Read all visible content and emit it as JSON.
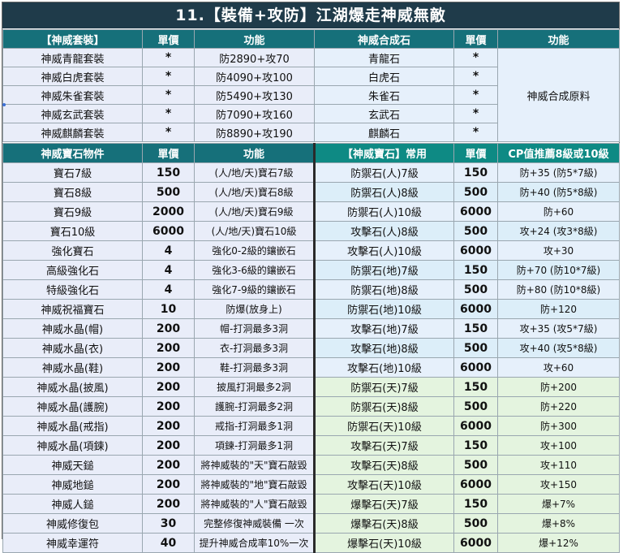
{
  "title": "11.【裝備+攻防】江湖爆走神威無敵",
  "top_table": {
    "headers": [
      "【神威套裝】",
      "單價",
      "功能",
      "神威合成石",
      "單價",
      "功能"
    ],
    "rows": [
      [
        "神威青龍套裝",
        "*",
        "防2890+攻70",
        "青龍石",
        "*"
      ],
      [
        "神威白虎套裝",
        "*",
        "防4090+攻100",
        "白虎石",
        "*"
      ],
      [
        "神威朱雀套裝",
        "*",
        "防5490+攻130",
        "朱雀石",
        "*"
      ],
      [
        "神威玄武套裝",
        "*",
        "防7090+攻160",
        "玄武石",
        "*"
      ],
      [
        "神威麒麟套裝",
        "*",
        "防8890+攻190",
        "麒麟石",
        "*"
      ]
    ],
    "merged_function": "神威合成原料"
  },
  "main_table": {
    "headers": [
      "神威寶石物件",
      "單價",
      "功能",
      "【神威寶石】常用",
      "單價",
      "CP值推薦8級或10級"
    ],
    "rows": [
      [
        "寶石7級",
        "150",
        "(人/地/天)寶石7級",
        "防禦石(人)7級",
        "150",
        "防+35 (防5*7級)"
      ],
      [
        "寶石8級",
        "500",
        "(人/地/天)寶石8級",
        "防禦石(人)8級",
        "500",
        "防+40 (防5*8級)"
      ],
      [
        "寶石9級",
        "2000",
        "(人/地/天)寶石9級",
        "防禦石(人)10級",
        "6000",
        "防+60"
      ],
      [
        "寶石10級",
        "6000",
        "(人/地/天)寶石10級",
        "攻擊石(人)8級",
        "500",
        "攻+24 (攻3*8級)"
      ],
      [
        "強化寶石",
        "4",
        "強化0-2級的鑲嵌石",
        "攻擊石(人)10級",
        "6000",
        "攻+30"
      ],
      [
        "高級強化石",
        "4",
        "強化3-6級的鑲嵌石",
        "防禦石(地)7級",
        "150",
        "防+70 (防10*7級)"
      ],
      [
        "特級強化石",
        "4",
        "強化7-9級的鑲嵌石",
        "防禦石(地)8級",
        "500",
        "防+80 (防10*8級)"
      ],
      [
        "神威祝福寶石",
        "10",
        "防爆(放身上)",
        "防禦石(地)10級",
        "6000",
        "防+120"
      ],
      [
        "神威水晶(帽)",
        "200",
        "帽-打洞最多3洞",
        "攻擊石(地)7級",
        "150",
        "攻+35 (攻5*7級)"
      ],
      [
        "神威水晶(衣)",
        "200",
        "衣-打洞最多3洞",
        "攻擊石(地)8級",
        "500",
        "攻+40 (攻5*8級)"
      ],
      [
        "神威水晶(鞋)",
        "200",
        "鞋-打洞最多3洞",
        "攻擊石(地)10級",
        "6000",
        "攻+60"
      ],
      [
        "神威水晶(披風)",
        "200",
        "披風打洞最多2洞",
        "防禦石(天)7級",
        "150",
        "防+200"
      ],
      [
        "神威水晶(護腕)",
        "200",
        "護腕-打洞最多2洞",
        "防禦石(天)8級",
        "500",
        "防+220"
      ],
      [
        "神威水晶(戒指)",
        "200",
        "戒指-打洞最多1洞",
        "防禦石(天)10級",
        "6000",
        "防+300"
      ],
      [
        "神威水晶(項鍊)",
        "200",
        "項鍊-打洞最多1洞",
        "攻擊石(天)7級",
        "150",
        "攻+100"
      ],
      [
        "神威天鎚",
        "200",
        "將神威裝的\"天\"寶石敲毀",
        "攻擊石(天)8級",
        "500",
        "攻+110"
      ],
      [
        "神威地鎚",
        "200",
        "將神威裝的\"地\"寶石敲毀",
        "攻擊石(天)10級",
        "6000",
        "攻+150"
      ],
      [
        "神威人鎚",
        "200",
        "將神威裝的\"人\"寶石敲毀",
        "爆擊石(天)7級",
        "150",
        "爆+7%"
      ],
      [
        "神威修復包",
        "30",
        "完整修復神威裝備 一次",
        "爆擊石(天)8級",
        "500",
        "爆+8%"
      ],
      [
        "神威幸運符",
        "40",
        "提升神威合成率10%一次",
        "爆擊石(天)10級",
        "6000",
        "爆+12%"
      ]
    ]
  },
  "colors": {
    "title_bg": "#1f3b4a",
    "header_bg": "#16707a",
    "header_right_bg": "#0e8a84",
    "left_cells": "#e9edf9",
    "heaven_rows": "#e4f4df"
  }
}
